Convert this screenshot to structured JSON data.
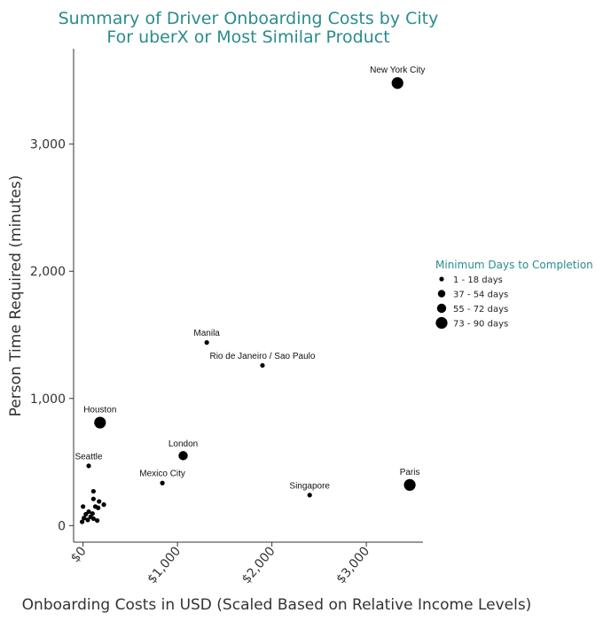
{
  "chart_data": {
    "type": "scatter",
    "title": [
      "Summary of Driver Onboarding Costs by City",
      "For uberX or Most Similar Product"
    ],
    "xlabel": "Onboarding Costs in USD (Scaled Based on Relative Income Levels)",
    "ylabel": "Person Time Required (minutes)",
    "xlim": [
      -100,
      3600
    ],
    "ylim": [
      -130,
      3750
    ],
    "x_ticks": [
      {
        "value": 0,
        "label": "$0"
      },
      {
        "value": 1000,
        "label": "$1,000"
      },
      {
        "value": 2000,
        "label": "$2,000"
      },
      {
        "value": 3000,
        "label": "$3,000"
      }
    ],
    "y_ticks": [
      {
        "value": 0,
        "label": "0"
      },
      {
        "value": 1000,
        "label": "1,000"
      },
      {
        "value": 2000,
        "label": "2,000"
      },
      {
        "value": 3000,
        "label": "3,000"
      }
    ],
    "legend": {
      "title": "Minimum Days to Completion",
      "position": "right",
      "entries": [
        {
          "label": "1 - 18 days",
          "size": 1
        },
        {
          "label": "37 - 54 days",
          "size": 2
        },
        {
          "label": "55 - 72 days",
          "size": 3
        },
        {
          "label": "73 - 90 days",
          "size": 4
        }
      ]
    },
    "points": [
      {
        "label": "New York City",
        "x": 3330,
        "y": 3480,
        "size": 4
      },
      {
        "label": "Manila",
        "x": 1310,
        "y": 1440,
        "size": 1
      },
      {
        "label": "Rio de Janeiro / Sao Paulo",
        "x": 1900,
        "y": 1260,
        "size": 1
      },
      {
        "label": "Houston",
        "x": 180,
        "y": 810,
        "size": 4
      },
      {
        "label": "London",
        "x": 1060,
        "y": 550,
        "size": 3
      },
      {
        "label": "Seattle",
        "x": 60,
        "y": 470,
        "size": 1
      },
      {
        "label": "Mexico City",
        "x": 840,
        "y": 335,
        "size": 1
      },
      {
        "label": "Singapore",
        "x": 2400,
        "y": 240,
        "size": 1
      },
      {
        "label": "Paris",
        "x": 3460,
        "y": 320,
        "size": 4
      },
      {
        "label": "",
        "x": 110,
        "y": 270,
        "size": 1
      },
      {
        "label": "",
        "x": 110,
        "y": 210,
        "size": 1
      },
      {
        "label": "",
        "x": 170,
        "y": 190,
        "size": 1
      },
      {
        "label": "",
        "x": 220,
        "y": 165,
        "size": 1
      },
      {
        "label": "",
        "x": 130,
        "y": 150,
        "size": 1
      },
      {
        "label": "",
        "x": 0,
        "y": 150,
        "size": 1
      },
      {
        "label": "",
        "x": 160,
        "y": 140,
        "size": 1
      },
      {
        "label": "",
        "x": 60,
        "y": 110,
        "size": 1
      },
      {
        "label": "",
        "x": 100,
        "y": 95,
        "size": 1
      },
      {
        "label": "",
        "x": 30,
        "y": 90,
        "size": 1
      },
      {
        "label": "",
        "x": 80,
        "y": 70,
        "size": 1
      },
      {
        "label": "",
        "x": 10,
        "y": 60,
        "size": 1
      },
      {
        "label": "",
        "x": 110,
        "y": 55,
        "size": 1
      },
      {
        "label": "",
        "x": 150,
        "y": 40,
        "size": 1
      },
      {
        "label": "",
        "x": -10,
        "y": 30,
        "size": 1
      },
      {
        "label": "",
        "x": 50,
        "y": 45,
        "size": 1
      }
    ]
  }
}
